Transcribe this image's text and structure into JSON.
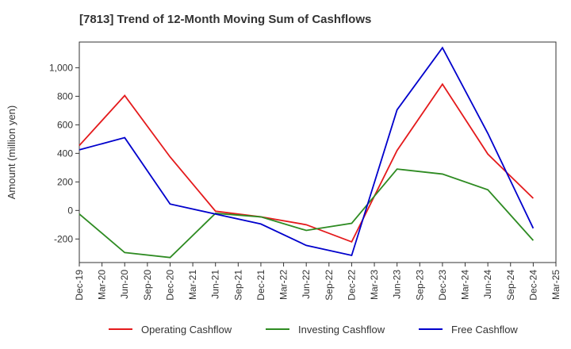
{
  "chart_data": {
    "type": "line",
    "title": "[7813]  Trend of 12-Month Moving Sum of Cashflows",
    "ylabel": "Amount (million yen)",
    "xlabel": "",
    "categories": [
      "Dec-19",
      "Mar-20",
      "Jun-20",
      "Sep-20",
      "Dec-20",
      "Mar-21",
      "Jun-21",
      "Sep-21",
      "Dec-21",
      "Mar-22",
      "Jun-22",
      "Sep-22",
      "Dec-22",
      "Mar-23",
      "Jun-23",
      "Sep-23",
      "Dec-23",
      "Mar-24",
      "Jun-24",
      "Sep-24",
      "Dec-24",
      "Mar-25"
    ],
    "yticks": [
      -200,
      0,
      200,
      400,
      600,
      800,
      1000
    ],
    "ytick_labels": [
      "-200",
      "0",
      "200",
      "400",
      "600",
      "800",
      "1,000"
    ],
    "ylim": [
      -365,
      1180
    ],
    "grid": true,
    "legend_position": "bottom",
    "series": [
      {
        "name": "Operating Cashflow",
        "color": "#e41a1c",
        "x": [
          "Dec-19",
          "Jun-20",
          "Dec-20",
          "Jun-21",
          "Dec-21",
          "Jun-22",
          "Dec-22",
          "Jun-23",
          "Dec-23",
          "Jun-24",
          "Dec-24"
        ],
        "values": [
          455,
          805,
          375,
          -5,
          -45,
          -100,
          -220,
          420,
          885,
          395,
          85
        ]
      },
      {
        "name": "Investing Cashflow",
        "color": "#2e8b22",
        "x": [
          "Dec-19",
          "Jun-20",
          "Dec-20",
          "Jun-21",
          "Dec-21",
          "Jun-22",
          "Dec-22",
          "Jun-23",
          "Dec-23",
          "Jun-24",
          "Dec-24"
        ],
        "values": [
          -25,
          -295,
          -330,
          -20,
          -45,
          -140,
          -90,
          290,
          255,
          145,
          -210
        ]
      },
      {
        "name": "Free Cashflow",
        "color": "#0000cc",
        "x": [
          "Dec-19",
          "Jun-20",
          "Dec-20",
          "Jun-21",
          "Dec-21",
          "Jun-22",
          "Dec-22",
          "Jun-23",
          "Dec-23",
          "Jun-24",
          "Dec-24"
        ],
        "values": [
          425,
          510,
          45,
          -25,
          -95,
          -245,
          -315,
          705,
          1140,
          540,
          -125
        ]
      }
    ]
  }
}
